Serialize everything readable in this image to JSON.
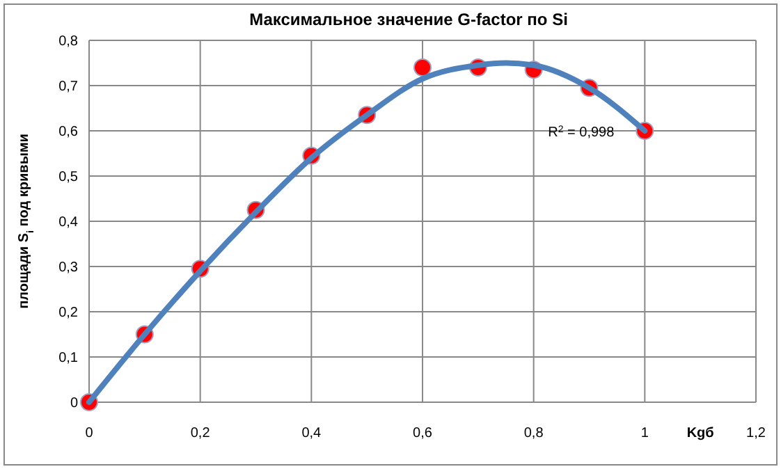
{
  "chart_data": {
    "type": "scatter",
    "title": "Максимальное значение G-factor  по Si",
    "xlabel": "Kgб",
    "ylabel": "площади S$_{i}$ под кривыми",
    "xlim": [
      0,
      1.2
    ],
    "ylim": [
      0,
      0.8
    ],
    "xticks": [
      0,
      {
        "value": 0.2,
        "label": "0,2"
      },
      {
        "value": 0.4,
        "label": "0,4"
      },
      {
        "value": 0.6,
        "label": "0,6"
      },
      {
        "value": 0.8,
        "label": "0,8"
      },
      1,
      {
        "value": 1.2,
        "label": "1,2"
      }
    ],
    "yticks": [
      0,
      {
        "value": 0.1,
        "label": "0,1"
      },
      {
        "value": 0.2,
        "label": "0,2"
      },
      {
        "value": 0.3,
        "label": "0,3"
      },
      {
        "value": 0.4,
        "label": "0,4"
      },
      {
        "value": 0.5,
        "label": "0,5"
      },
      {
        "value": 0.6,
        "label": "0,6"
      },
      {
        "value": 0.7,
        "label": "0,7"
      },
      {
        "value": 0.8,
        "label": "0,8"
      }
    ],
    "grid": true,
    "series": [
      {
        "color": "#ff0000",
        "marker": "circle",
        "x": [
          0,
          0.1,
          0.2,
          0.3,
          0.4,
          0.5,
          0.6,
          0.7,
          0.8,
          0.9,
          1
        ],
        "values": [
          0,
          0.15,
          0.295,
          0.425,
          0.545,
          0.635,
          0.74,
          0.74,
          0.735,
          0.695,
          0.6
        ]
      },
      {
        "type": "line",
        "color": "#4f81bd",
        "marker": "none",
        "x": [
          0,
          0.1,
          0.2,
          0.3,
          0.4,
          0.5,
          0.6,
          0.7,
          0.75,
          0.8,
          0.9,
          1
        ],
        "values": [
          0,
          0.15,
          0.29,
          0.42,
          0.54,
          0.635,
          0.715,
          0.745,
          0.75,
          0.745,
          0.695,
          0.6
        ]
      }
    ],
    "annotations": [
      "R$^{2}$ = 0,998"
    ]
  }
}
